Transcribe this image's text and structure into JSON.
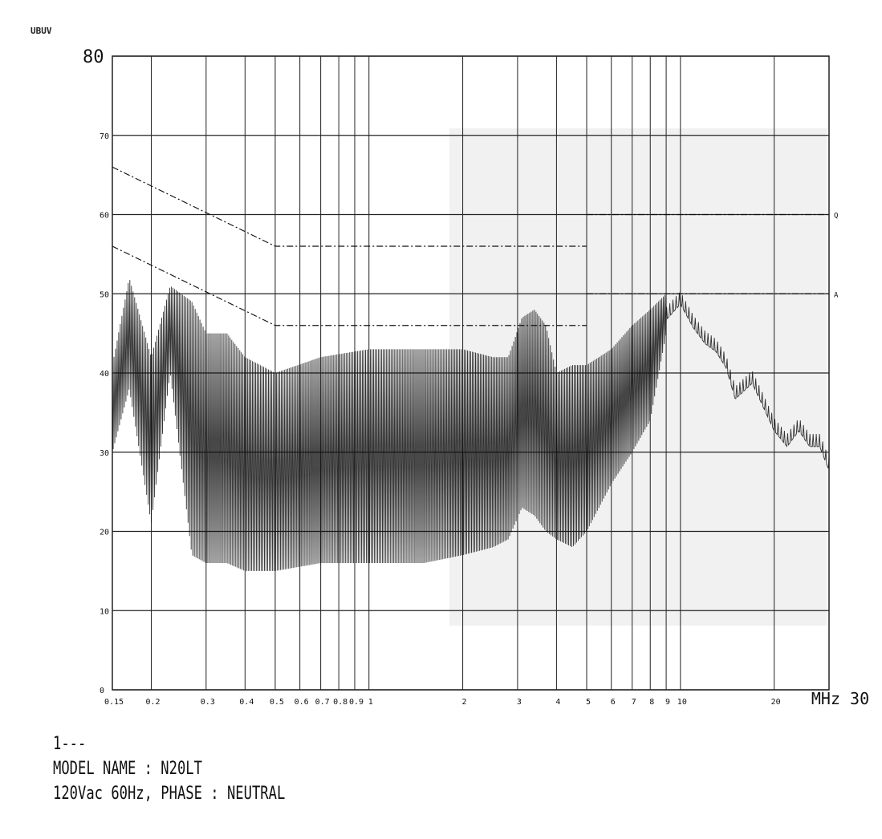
{
  "header": {
    "unit_label": "UBUV"
  },
  "footer": {
    "marker": "1---",
    "model_line": "MODEL NAME : N20LT",
    "condition_line": "120Vac 60Hz, PHASE : NEUTRAL"
  },
  "colors": {
    "ink": "#111111",
    "grid": "#222222",
    "paper": "#ffffff",
    "shade": "#d8d8d8"
  },
  "chart_data": {
    "type": "line",
    "y_unit": "",
    "x_unit": "MHz",
    "y_range": [
      0,
      80
    ],
    "y_ticks": [
      {
        "v": 0,
        "label": "0"
      },
      {
        "v": 10,
        "label": "10"
      },
      {
        "v": 20,
        "label": "20"
      },
      {
        "v": 30,
        "label": "30"
      },
      {
        "v": 40,
        "label": "40"
      },
      {
        "v": 50,
        "label": "50"
      },
      {
        "v": 60,
        "label": "60"
      },
      {
        "v": 70,
        "label": "70"
      },
      {
        "v": 80,
        "label": "80"
      }
    ],
    "x_range": [
      0.15,
      30
    ],
    "x_log": true,
    "x_ticks": [
      {
        "v": 0.15,
        "label": "0.15"
      },
      {
        "v": 0.2,
        "label": "0.2"
      },
      {
        "v": 0.3,
        "label": "0.3"
      },
      {
        "v": 0.4,
        "label": "0.4"
      },
      {
        "v": 0.5,
        "label": "0.5"
      },
      {
        "v": 0.6,
        "label": "0.6"
      },
      {
        "v": 0.7,
        "label": "0.7"
      },
      {
        "v": 0.8,
        "label": "0.8"
      },
      {
        "v": 0.9,
        "label": "0.9"
      },
      {
        "v": 1,
        "label": "1"
      },
      {
        "v": 2,
        "label": "2"
      },
      {
        "v": 3,
        "label": "3"
      },
      {
        "v": 4,
        "label": "4"
      },
      {
        "v": 5,
        "label": "5"
      },
      {
        "v": 6,
        "label": "6"
      },
      {
        "v": 7,
        "label": "7"
      },
      {
        "v": 8,
        "label": "8"
      },
      {
        "v": 9,
        "label": "9"
      },
      {
        "v": 10,
        "label": "10"
      },
      {
        "v": 20,
        "label": "20"
      },
      {
        "v": 30,
        "label": "30"
      }
    ],
    "x_end_label": "MHz 30",
    "grid": true,
    "limit_lines": [
      {
        "name": "Q",
        "points": [
          [
            0.15,
            66
          ],
          [
            0.5,
            56
          ],
          [
            5,
            56
          ]
        ],
        "end_level": 60,
        "end_from": 5
      },
      {
        "name": "A",
        "points": [
          [
            0.15,
            56
          ],
          [
            0.5,
            46
          ],
          [
            5,
            46
          ]
        ],
        "end_level": 50,
        "end_from": 5
      }
    ],
    "series": [
      {
        "upper_envelope": [
          [
            0.15,
            41
          ],
          [
            0.17,
            52
          ],
          [
            0.2,
            42
          ],
          [
            0.23,
            51
          ],
          [
            0.27,
            49
          ],
          [
            0.3,
            45
          ],
          [
            0.35,
            45
          ],
          [
            0.4,
            42
          ],
          [
            0.5,
            40
          ],
          [
            0.7,
            42
          ],
          [
            1,
            43
          ],
          [
            1.5,
            43
          ],
          [
            2,
            43
          ],
          [
            2.5,
            42
          ],
          [
            2.8,
            42
          ],
          [
            3.1,
            47
          ],
          [
            3.4,
            48
          ],
          [
            3.7,
            46
          ],
          [
            4,
            40
          ],
          [
            4.5,
            41
          ],
          [
            5,
            41
          ],
          [
            6,
            43
          ],
          [
            7,
            46
          ],
          [
            8,
            48
          ],
          [
            9,
            50
          ],
          [
            10,
            50
          ],
          [
            11,
            47
          ],
          [
            12,
            45
          ],
          [
            13,
            44
          ],
          [
            14,
            42
          ],
          [
            15,
            38
          ],
          [
            17,
            40
          ],
          [
            20,
            34
          ],
          [
            22,
            32
          ],
          [
            24,
            34
          ],
          [
            26,
            32
          ],
          [
            28,
            32
          ],
          [
            30,
            29
          ]
        ],
        "lower_envelope": [
          [
            0.15,
            30
          ],
          [
            0.17,
            38
          ],
          [
            0.2,
            21
          ],
          [
            0.23,
            40
          ],
          [
            0.27,
            17
          ],
          [
            0.3,
            16
          ],
          [
            0.35,
            16
          ],
          [
            0.4,
            15
          ],
          [
            0.5,
            15
          ],
          [
            0.7,
            16
          ],
          [
            1,
            16
          ],
          [
            1.5,
            16
          ],
          [
            2,
            17
          ],
          [
            2.5,
            18
          ],
          [
            2.8,
            19
          ],
          [
            3.1,
            23
          ],
          [
            3.4,
            22
          ],
          [
            3.7,
            20
          ],
          [
            4,
            19
          ],
          [
            4.5,
            18
          ],
          [
            5,
            20
          ],
          [
            6,
            26
          ],
          [
            7,
            30
          ],
          [
            8,
            34
          ],
          [
            9,
            45
          ],
          [
            10,
            49
          ],
          [
            11,
            46
          ],
          [
            12,
            44
          ],
          [
            13,
            43
          ],
          [
            14,
            41
          ],
          [
            15,
            37
          ],
          [
            17,
            39
          ],
          [
            20,
            33
          ],
          [
            22,
            31
          ],
          [
            24,
            33
          ],
          [
            26,
            31
          ],
          [
            28,
            31
          ],
          [
            30,
            28
          ]
        ]
      }
    ]
  }
}
